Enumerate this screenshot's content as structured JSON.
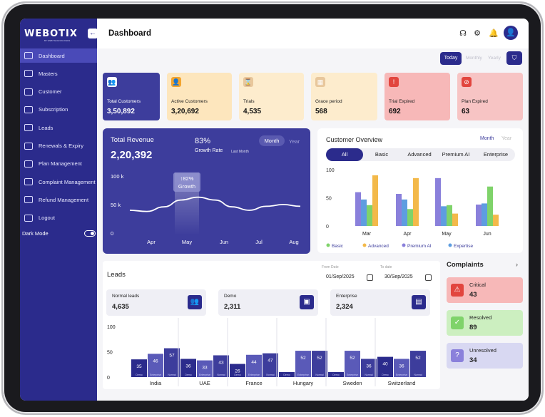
{
  "sidebar": {
    "logo": "WEBOTIX",
    "logo_sub": "BY WEB TECHNOLOGIES",
    "collapse_icon": "arrow-left-icon",
    "items": [
      {
        "label": "Dashboard",
        "icon": "cloud-icon",
        "active": true
      },
      {
        "label": "Masters",
        "icon": "layers-icon",
        "active": false
      },
      {
        "label": "Customer",
        "icon": "user-icon",
        "active": false
      },
      {
        "label": "Subscription",
        "icon": "card-icon",
        "active": false
      },
      {
        "label": "Leads",
        "icon": "doc-icon",
        "active": false
      },
      {
        "label": "Renewals & Expiry",
        "icon": "refresh-icon",
        "active": false
      },
      {
        "label": "Plan Management",
        "icon": "plan-icon",
        "active": false
      },
      {
        "label": "Complaint Management",
        "icon": "complaint-icon",
        "active": false
      },
      {
        "label": "Refund Management",
        "icon": "refund-icon",
        "active": false
      },
      {
        "label": "Logout",
        "icon": "power-icon",
        "active": false
      }
    ],
    "dark_mode_label": "Dark Mode"
  },
  "header": {
    "title": "Dashboard",
    "icons": [
      "headset-icon",
      "gear-icon",
      "bell-icon",
      "user-avatar-icon"
    ]
  },
  "range": {
    "today": "Today",
    "monthly": "Monthly",
    "yearly": "Yearly"
  },
  "stats": [
    {
      "label": "Total Customers",
      "value": "3,50,892",
      "bg": "#3d3d9c",
      "icon_bg": "#ffffff",
      "dark": true
    },
    {
      "label": "Active  Customers",
      "value": "3,20,692",
      "bg": "#fde6bd",
      "icon_bg": "#f3a42e",
      "dark": false
    },
    {
      "label": "Trials",
      "value": "4,535",
      "bg": "#fdeccd",
      "icon_bg": "#e8c79c",
      "dark": false
    },
    {
      "label": "Grace period",
      "value": "568",
      "bg": "#fdeccd",
      "icon_bg": "#e8c79c",
      "dark": false
    },
    {
      "label": "Trial Expired",
      "value": "692",
      "bg": "#f7b8b8",
      "icon_bg": "#e2453e",
      "dark": false
    },
    {
      "label": "Plan Expired",
      "value": "63",
      "bg": "#f7c4c4",
      "icon_bg": "#e2453e",
      "dark": false
    }
  ],
  "revenue": {
    "title": "Total Revenue",
    "value": "2,20,392",
    "pct": "83%",
    "growth_label": "Growth Rate",
    "period": "Last Month",
    "tab_month": "Month",
    "tab_year": "Year",
    "tooltip_line1": "↑82%",
    "tooltip_line2": "Growth",
    "y_labels": [
      "100 k",
      "50 k",
      "0"
    ],
    "x_labels": [
      "Apr",
      "May",
      "Jun",
      "Jul",
      "Aug"
    ],
    "series": [
      40,
      38,
      46,
      58,
      63,
      58,
      46,
      40,
      47,
      50,
      47
    ]
  },
  "overview": {
    "title": "Customer Overview",
    "tab_month": "Month",
    "tab_year": "Year",
    "tabs": [
      "All",
      "Basic",
      "Advanced",
      "Premium AI",
      "Enterprise"
    ],
    "legend_dots": [
      "#3d3d9c",
      "#7fd36a",
      "#f3b94a",
      "#5e9de0"
    ]
  },
  "chart_data": [
    {
      "type": "line",
      "title": "Total Revenue",
      "x": [
        "Apr",
        "May",
        "Jun",
        "Jul",
        "Aug"
      ],
      "ylim": [
        0,
        100
      ],
      "yticks": [
        "0",
        "50 k",
        "100 k"
      ]
    },
    {
      "type": "bar",
      "title": "Customer Overview",
      "categories": [
        "Mar",
        "Apr",
        "May",
        "Jun"
      ],
      "ylim": [
        0,
        100
      ],
      "yticks": [
        0,
        50,
        100
      ],
      "series": [
        {
          "name": "Basic",
          "color": "#7fd36a",
          "values": [
            37,
            30,
            37,
            70
          ]
        },
        {
          "name": "Advanced",
          "color": "#f3b94a",
          "values": [
            90,
            85,
            22,
            20
          ]
        },
        {
          "name": "Premium AI",
          "color": "#8a80db",
          "values": [
            60,
            57,
            85,
            38
          ]
        },
        {
          "name": "Expertise",
          "color": "#5e9de0",
          "values": [
            47,
            47,
            35,
            40
          ]
        }
      ],
      "legend": [
        "Basic",
        "Advanced",
        "Premium AI",
        "Expertise"
      ]
    },
    {
      "type": "bar",
      "title": "Leads",
      "categories": [
        "India",
        "UAE",
        "France",
        "Hungary",
        "Sweden",
        "Switzerland"
      ],
      "ylim": [
        0,
        100
      ],
      "yticks": [
        0,
        50,
        100
      ],
      "sub_labels": [
        "Demo",
        "Enterprise",
        "Normal"
      ],
      "series": [
        {
          "name": "Demo",
          "values": [
            35,
            36,
            26,
            10,
            10,
            40
          ]
        },
        {
          "name": "Enterprise",
          "values": [
            46,
            33,
            44,
            52,
            52,
            36
          ]
        },
        {
          "name": "Normal",
          "values": [
            57,
            43,
            47,
            52,
            36,
            52
          ]
        }
      ]
    }
  ],
  "leads": {
    "title": "Leads",
    "from_label": "From Date",
    "from_value": "01/Sep/2025",
    "to_label": "To date",
    "to_value": "30/Sep/2025",
    "cards": [
      {
        "label": "Normal leads",
        "value": "4,635",
        "icon": "group-icon"
      },
      {
        "label": "Demo",
        "value": "2,311",
        "icon": "presentation-icon"
      },
      {
        "label": "Enterprise",
        "value": "2,324",
        "icon": "building-icon"
      }
    ]
  },
  "complaints": {
    "title": "Complaints",
    "items": [
      {
        "label": "Critical",
        "value": "43",
        "bg": "#f7b8b8",
        "icon": "warning-icon"
      },
      {
        "label": "Resolved",
        "value": "89",
        "bg": "#ccefc0",
        "icon": "check-icon"
      },
      {
        "label": "Unresolved",
        "value": "34",
        "bg": "#d8d8f2",
        "icon": "question-icon"
      }
    ]
  }
}
